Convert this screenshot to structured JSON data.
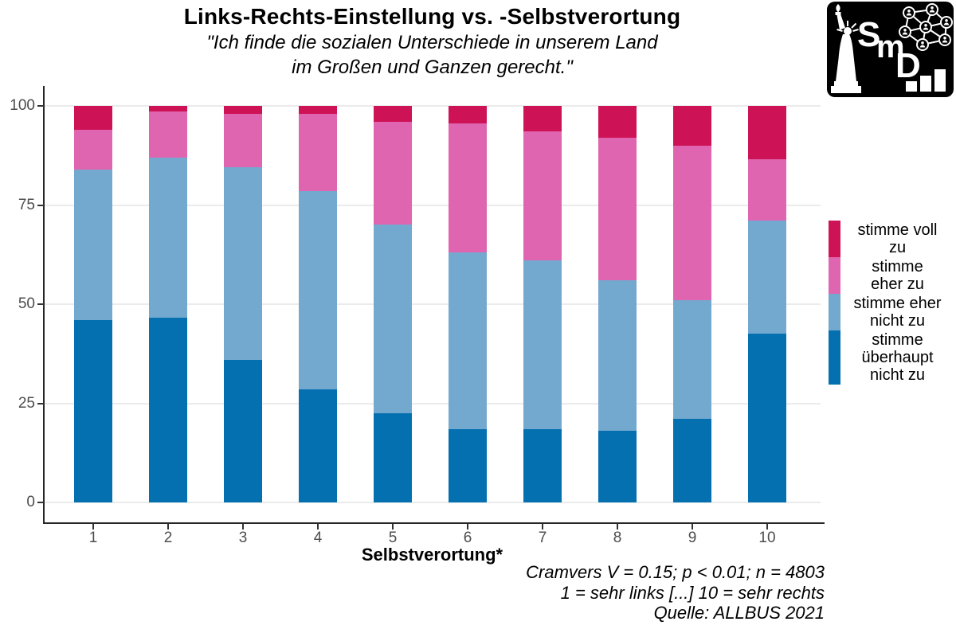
{
  "chart_data": {
    "type": "bar",
    "stacked": true,
    "unit": "percent",
    "title": "Links-Rechts-Einstellung vs. -Selbstverortung",
    "subtitle_lines": [
      "\"Ich finde die sozialen Unterschiede in unserem Land",
      "im Großen und Ganzen gerecht.\""
    ],
    "xlabel": "Selbstverortung*",
    "ylabel": "",
    "ylim": [
      0,
      100
    ],
    "yticks": [
      0,
      25,
      50,
      75,
      100
    ],
    "grid": "horizontal-only",
    "legend_position": "right",
    "categories": [
      "1",
      "2",
      "3",
      "4",
      "5",
      "6",
      "7",
      "8",
      "9",
      "10"
    ],
    "series": [
      {
        "name": "stimme überhaupt nicht zu",
        "color": "#0570B0",
        "values": [
          46,
          46.5,
          36,
          28.5,
          22.5,
          18.5,
          18.5,
          18,
          21,
          42.5
        ]
      },
      {
        "name": "stimme eher nicht zu",
        "color": "#74A9CF",
        "values": [
          38,
          40.5,
          48.5,
          50,
          47.5,
          44.5,
          42.5,
          38,
          30,
          28.5
        ]
      },
      {
        "name": "stimme eher zu",
        "color": "#DF65B0",
        "values": [
          10,
          11.5,
          13.5,
          19.5,
          26,
          32.5,
          32.5,
          36,
          39,
          15.5
        ]
      },
      {
        "name": "stimme voll zu",
        "color": "#CE1256",
        "values": [
          6,
          1.5,
          2,
          2,
          4,
          4.5,
          6.5,
          8,
          10,
          13.5
        ]
      }
    ],
    "legend_items_top_to_bottom": [
      {
        "label_lines": [
          "stimme voll",
          "zu"
        ],
        "color": "#CE1256"
      },
      {
        "label_lines": [
          "stimme",
          "eher zu"
        ],
        "color": "#DF65B0"
      },
      {
        "label_lines": [
          "stimme eher",
          "nicht zu"
        ],
        "color": "#74A9CF"
      },
      {
        "label_lines": [
          "stimme",
          "überhaupt",
          "nicht zu"
        ],
        "color": "#0570B0"
      }
    ],
    "caption_lines": [
      "Cramvers V = 0.15; p < 0.01; n = 4803",
      "1 = sehr links [...] 10 = sehr rechts",
      "Quelle: ALLBUS 2021"
    ]
  },
  "logo": {
    "letters": [
      "S",
      "m",
      "D"
    ]
  },
  "colors": {
    "background": "#FFFFFF",
    "gridline": "#EBEBEB",
    "axis_line": "#262626",
    "tick_label": "#4D4D4D",
    "logo_background": "#000000",
    "logo_foreground": "#FFFFFF"
  }
}
